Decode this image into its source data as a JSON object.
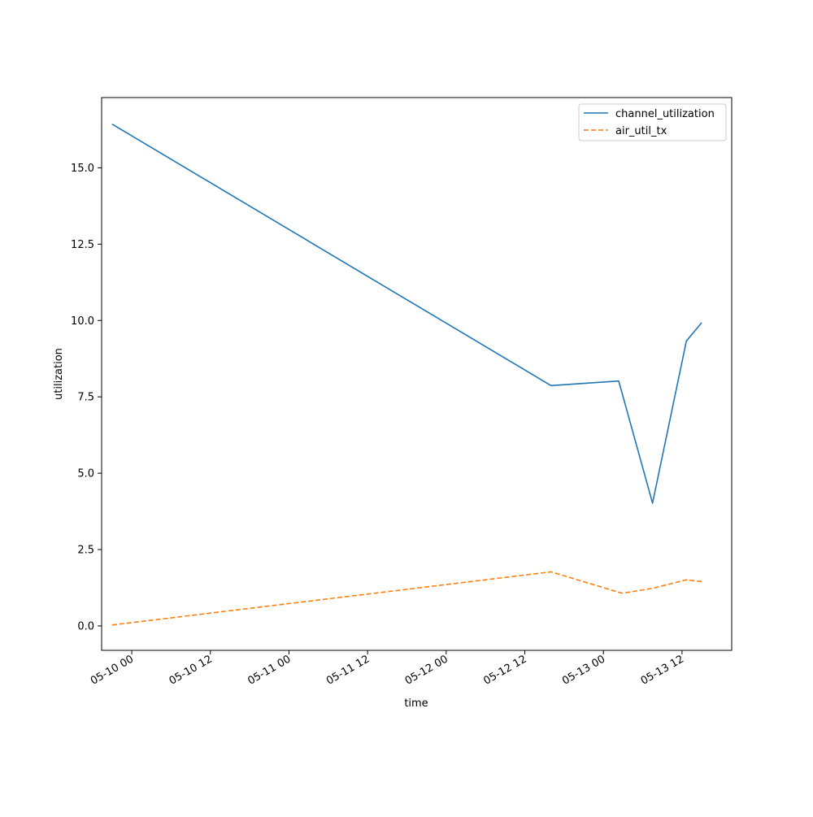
{
  "chart_data": {
    "type": "line",
    "title": "",
    "xlabel": "time",
    "ylabel": "utilization",
    "xlim": [
      "2024-05-09T19:24",
      "2024-05-13T19:35"
    ],
    "ylim": [
      -0.8,
      17.3
    ],
    "x_ticks": [
      "2024-05-10T00:00",
      "2024-05-10T12:00",
      "2024-05-11T00:00",
      "2024-05-11T12:00",
      "2024-05-12T00:00",
      "2024-05-12T12:00",
      "2024-05-13T00:00",
      "2024-05-13T12:00"
    ],
    "x_tick_labels": [
      "05-10 00",
      "05-10 12",
      "05-11 00",
      "05-11 12",
      "05-12 00",
      "05-12 12",
      "05-13 00",
      "05-13 12"
    ],
    "y_ticks": [
      0.0,
      2.5,
      5.0,
      7.5,
      10.0,
      12.5,
      15.0
    ],
    "y_tick_labels": [
      "0.0",
      "2.5",
      "5.0",
      "7.5",
      "10.0",
      "12.5",
      "15.0"
    ],
    "legend_position": "top-right",
    "grid": false,
    "series": [
      {
        "name": "channel_utilization",
        "color": "#1f77b4",
        "dash": "solid",
        "points": [
          [
            "2024-05-09T21:00",
            16.43
          ],
          [
            "2024-05-12T16:00",
            7.87
          ],
          [
            "2024-05-13T02:20",
            8.02
          ],
          [
            "2024-05-13T07:30",
            4.02
          ],
          [
            "2024-05-13T12:40",
            9.33
          ],
          [
            "2024-05-13T15:00",
            9.93
          ]
        ]
      },
      {
        "name": "air_util_tx",
        "color": "#ff7f0e",
        "dash": "dashed",
        "points": [
          [
            "2024-05-09T21:00",
            0.03
          ],
          [
            "2024-05-12T16:00",
            1.77
          ],
          [
            "2024-05-13T02:50",
            1.07
          ],
          [
            "2024-05-13T07:30",
            1.23
          ],
          [
            "2024-05-13T12:40",
            1.51
          ],
          [
            "2024-05-13T15:00",
            1.45
          ]
        ]
      }
    ]
  }
}
